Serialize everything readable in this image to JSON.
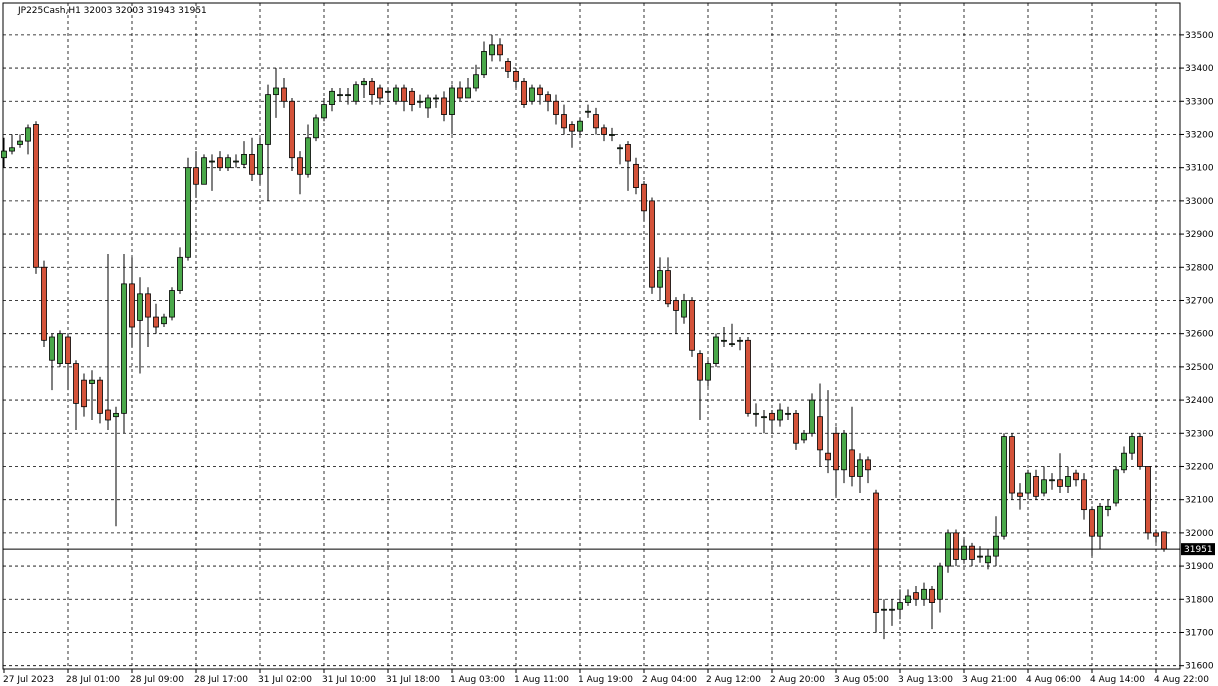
{
  "chart_data": {
    "type": "candlestick",
    "title": "JP225Cash,H1  32003 32003 31943 31951",
    "categories": [
      "27 Jul 2023",
      null,
      null,
      null,
      null,
      null,
      null,
      null,
      "28 Jul 01:00",
      null,
      null,
      null,
      null,
      null,
      null,
      null,
      "28 Jul 09:00",
      null,
      null,
      null,
      null,
      null,
      null,
      null,
      "28 Jul 17:00",
      null,
      null,
      null,
      null,
      null,
      null,
      null,
      "31 Jul 02:00",
      null,
      null,
      null,
      null,
      null,
      null,
      null,
      "31 Jul 10:00",
      null,
      null,
      null,
      null,
      null,
      null,
      null,
      "31 Jul 18:00",
      null,
      null,
      null,
      null,
      null,
      null,
      null,
      "1 Aug 03:00",
      null,
      null,
      null,
      null,
      null,
      null,
      null,
      "1 Aug 11:00",
      null,
      null,
      null,
      null,
      null,
      null,
      null,
      "1 Aug 19:00",
      null,
      null,
      null,
      null,
      null,
      null,
      null,
      "2 Aug 04:00",
      null,
      null,
      null,
      null,
      null,
      null,
      null,
      "2 Aug 12:00",
      null,
      null,
      null,
      null,
      null,
      null,
      null,
      "2 Aug 20:00",
      null,
      null,
      null,
      null,
      null,
      null,
      null,
      "3 Aug 05:00",
      null,
      null,
      null,
      null,
      null,
      null,
      null,
      "3 Aug 13:00",
      null,
      null,
      null,
      null,
      null,
      null,
      null,
      "3 Aug 21:00",
      null,
      null,
      null,
      null,
      null,
      null,
      null,
      "4 Aug 06:00",
      null,
      null,
      null,
      null,
      null,
      null,
      null,
      "4 Aug 14:00",
      null,
      null,
      null,
      null,
      null,
      null,
      null,
      "4 Aug 22:00",
      null
    ],
    "series": [
      {
        "up_color": "#4aa84a",
        "down_color": "#d4533a",
        "open": [
          33130,
          33150,
          33170,
          33180,
          33230,
          32800,
          32520,
          32510,
          32590,
          32510,
          32460,
          32450,
          32460,
          32370,
          32350,
          32360,
          32750,
          32640,
          32720,
          32650,
          32630,
          32650,
          32730,
          32830,
          33100,
          33050,
          33120,
          33130,
          33100,
          33120,
          33110,
          33140,
          33080,
          33170,
          33320,
          33340,
          33300,
          33130,
          33080,
          33190,
          33250,
          33290,
          33320,
          33320,
          33300,
          33350,
          33360,
          33340,
          33330,
          33300,
          33340,
          33330,
          33300,
          33280,
          33310,
          33310,
          33260,
          33340,
          33310,
          33340,
          33380,
          33440,
          33470,
          33420,
          33390,
          33360,
          33300,
          33340,
          33320,
          33300,
          33260,
          33230,
          33210,
          33270,
          33260,
          33220,
          33200,
          33160,
          33170,
          33110,
          33050,
          33000,
          32740,
          32790,
          32700,
          32650,
          32700,
          32540,
          32460,
          32510,
          32580,
          32570,
          32580,
          32580,
          32360,
          32350,
          32360,
          32340,
          32360,
          32360,
          32280,
          32300,
          32350,
          32240,
          32300,
          32190,
          32250,
          32170,
          32220,
          32120,
          31770,
          31770,
          31770,
          31790,
          31820,
          31800,
          31830,
          31800,
          31900,
          32000,
          31920,
          31960,
          31930,
          31910,
          31930,
          31990,
          32290,
          32120,
          32120,
          32170,
          32120,
          32160,
          32160,
          32140,
          32180,
          32160,
          32070,
          31990,
          32070,
          32090,
          32190,
          32240,
          32290,
          32200,
          32000,
          32003
        ],
        "high": [
          33190,
          33200,
          33200,
          33230,
          33240,
          32820,
          32600,
          32610,
          32600,
          32520,
          32480,
          32490,
          32470,
          32840,
          32380,
          32840,
          32830,
          32770,
          32740,
          32690,
          32660,
          32740,
          32860,
          33130,
          33150,
          33140,
          33140,
          33150,
          33140,
          33140,
          33180,
          33190,
          33190,
          33350,
          33400,
          33370,
          33310,
          33150,
          33230,
          33260,
          33310,
          33340,
          33340,
          33340,
          33360,
          33370,
          33370,
          33350,
          33340,
          33350,
          33350,
          33340,
          33320,
          33320,
          33320,
          33330,
          33350,
          33360,
          33370,
          33410,
          33480,
          33500,
          33490,
          33430,
          33400,
          33370,
          33350,
          33350,
          33330,
          33320,
          33290,
          33240,
          33250,
          33290,
          33280,
          33230,
          33220,
          33170,
          33180,
          33130,
          33060,
          33010,
          32830,
          32830,
          32710,
          32720,
          32710,
          32550,
          32520,
          32600,
          32620,
          32630,
          32590,
          32590,
          32390,
          32370,
          32370,
          32390,
          32380,
          32370,
          32310,
          32420,
          32450,
          32430,
          32320,
          32310,
          32380,
          32240,
          32230,
          32130,
          31800,
          31800,
          31830,
          31830,
          31840,
          31850,
          31840,
          31910,
          32010,
          32010,
          31980,
          31970,
          31960,
          31950,
          32050,
          32300,
          32300,
          32150,
          32190,
          32190,
          32200,
          32180,
          32240,
          32200,
          32190,
          32180,
          32080,
          32090,
          32100,
          32200,
          32260,
          32300,
          32300,
          32200,
          32010,
          32003
        ],
        "low": [
          33100,
          33140,
          33160,
          33140,
          32780,
          32560,
          32430,
          32500,
          32430,
          32310,
          32350,
          32340,
          32330,
          32310,
          32020,
          32300,
          32560,
          32480,
          32560,
          32600,
          32620,
          32640,
          32720,
          32820,
          33010,
          33050,
          33030,
          33090,
          33090,
          33100,
          33100,
          33060,
          33050,
          33000,
          33250,
          33280,
          33090,
          33020,
          33070,
          33180,
          33240,
          33270,
          33300,
          33290,
          33290,
          33310,
          33290,
          33290,
          33300,
          33290,
          33270,
          33270,
          33280,
          33250,
          33280,
          33240,
          33200,
          33300,
          33310,
          33330,
          33370,
          33420,
          33420,
          33370,
          33340,
          33280,
          33290,
          33290,
          33270,
          33230,
          33200,
          33160,
          33200,
          33250,
          33200,
          33180,
          33180,
          33110,
          33030,
          33020,
          32940,
          32720,
          32700,
          32680,
          32600,
          32630,
          32530,
          32340,
          32440,
          32500,
          32560,
          32560,
          32550,
          32350,
          32320,
          32300,
          32300,
          32320,
          32340,
          32250,
          32270,
          32290,
          32200,
          32180,
          32110,
          32150,
          32140,
          32120,
          32150,
          31700,
          31680,
          31720,
          31740,
          31780,
          31780,
          31780,
          31710,
          31760,
          31880,
          31900,
          31910,
          31900,
          31910,
          31890,
          31900,
          31980,
          32100,
          32070,
          32100,
          32100,
          32110,
          32130,
          32120,
          32120,
          32140,
          32040,
          31930,
          31950,
          32050,
          32080,
          32180,
          32220,
          32190,
          31980,
          31970,
          31943
        ],
        "close": [
          33150,
          33160,
          33180,
          33220,
          32800,
          32580,
          32590,
          32600,
          32510,
          32390,
          32380,
          32460,
          32360,
          32340,
          32360,
          32750,
          32620,
          32720,
          32650,
          32620,
          32650,
          32730,
          32830,
          33100,
          33050,
          33130,
          33120,
          33100,
          33130,
          33120,
          33140,
          33080,
          33170,
          33320,
          33340,
          33300,
          33130,
          33080,
          33190,
          33250,
          33290,
          33330,
          33320,
          33320,
          33350,
          33360,
          33320,
          33310,
          33330,
          33340,
          33300,
          33290,
          33300,
          33310,
          33310,
          33260,
          33340,
          33310,
          33340,
          33380,
          33450,
          33470,
          33440,
          33390,
          33360,
          33290,
          33340,
          33320,
          33300,
          33260,
          33220,
          33210,
          33240,
          33270,
          33220,
          33200,
          33200,
          33160,
          33120,
          33040,
          32970,
          32740,
          32790,
          32690,
          32670,
          32700,
          32550,
          32460,
          32510,
          32590,
          32580,
          32570,
          32580,
          32360,
          32360,
          32350,
          32340,
          32370,
          32360,
          32270,
          32300,
          32400,
          32250,
          32220,
          32190,
          32300,
          32170,
          32220,
          32190,
          31760,
          31770,
          31770,
          31790,
          31810,
          31800,
          31830,
          31790,
          31900,
          32000,
          31920,
          31960,
          31920,
          31930,
          31930,
          31990,
          32290,
          32120,
          32110,
          32180,
          32110,
          32160,
          32160,
          32140,
          32170,
          32160,
          32070,
          31990,
          32080,
          32080,
          32190,
          32240,
          32290,
          32200,
          32000,
          31990,
          31951
        ]
      }
    ],
    "ylim": [
      31590,
      33596
    ],
    "yticks": [
      31600,
      31700,
      31800,
      31900,
      32000,
      32100,
      32200,
      32300,
      32400,
      32500,
      32600,
      32700,
      32800,
      32900,
      33000,
      33100,
      33200,
      33300,
      33400,
      33500
    ],
    "grid": true
  }
}
